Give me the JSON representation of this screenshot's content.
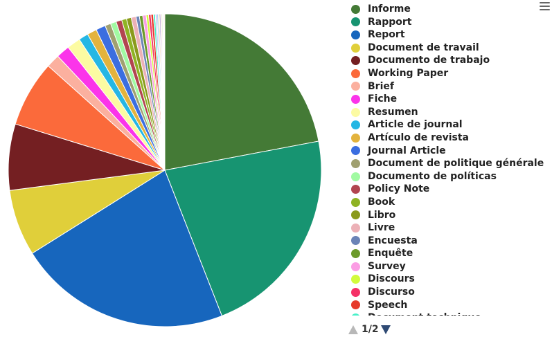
{
  "chart_data": {
    "type": "pie",
    "slices": [
      {
        "label": "Informe",
        "value": 22.2,
        "color": "#447a36"
      },
      {
        "label": "Rapport",
        "value": 22.2,
        "color": "#179471"
      },
      {
        "label": "Report",
        "value": 22.2,
        "color": "#1766bd"
      },
      {
        "label": "Document de travail",
        "value": 6.9,
        "color": "#e0cf3a"
      },
      {
        "label": "Documento de trabajo",
        "value": 6.9,
        "color": "#741f22"
      },
      {
        "label": "Working Paper",
        "value": 6.9,
        "color": "#fb6a3b"
      },
      {
        "label": "Brief",
        "value": 1.4,
        "color": "#fbb09f"
      },
      {
        "label": "Fiche",
        "value": 1.4,
        "color": "#fb34ea"
      },
      {
        "label": "Resumen",
        "value": 1.4,
        "color": "#fcfba2"
      },
      {
        "label": "Article de journal",
        "value": 1.0,
        "color": "#25b7e4"
      },
      {
        "label": "Artículo de revista",
        "value": 1.0,
        "color": "#e3b33d"
      },
      {
        "label": "Journal Article",
        "value": 1.0,
        "color": "#3b6ee0"
      },
      {
        "label": "Document de politique générale",
        "value": 0.6,
        "color": "#a0a070"
      },
      {
        "label": "Documento de políticas",
        "value": 0.6,
        "color": "#a1faa2"
      },
      {
        "label": "Policy Note",
        "value": 0.6,
        "color": "#b24550"
      },
      {
        "label": "Book",
        "value": 0.5,
        "color": "#8fb324"
      },
      {
        "label": "Libro",
        "value": 0.5,
        "color": "#8a9a1c"
      },
      {
        "label": "Livre",
        "value": 0.5,
        "color": "#ecb1b7"
      },
      {
        "label": "Encuesta",
        "value": 0.35,
        "color": "#6b84b7"
      },
      {
        "label": "Enquête",
        "value": 0.35,
        "color": "#6c9a2a"
      },
      {
        "label": "Survey",
        "value": 0.35,
        "color": "#fb9de4"
      },
      {
        "label": "Discours",
        "value": 0.25,
        "color": "#d2fb3c"
      },
      {
        "label": "Discurso",
        "value": 0.25,
        "color": "#f53167"
      },
      {
        "label": "Speech",
        "value": 0.25,
        "color": "#e63a2b"
      },
      {
        "label": "Document technique",
        "value": 0.2,
        "color": "#48f0c8"
      },
      {
        "label": "",
        "value": 0.15,
        "color": "#c7a4e8"
      },
      {
        "label": "",
        "value": 0.15,
        "color": "#9ed3f5"
      },
      {
        "label": "",
        "value": 0.12,
        "color": "#f5c46e"
      },
      {
        "label": "",
        "value": 0.12,
        "color": "#8e7cc3"
      },
      {
        "label": "",
        "value": 0.1,
        "color": "#ff8fb1"
      },
      {
        "label": "",
        "value": 0.1,
        "color": "#b5e48c"
      },
      {
        "label": "",
        "value": 0.08,
        "color": "#ffd166"
      },
      {
        "label": "",
        "value": 0.08,
        "color": "#90dbf4"
      },
      {
        "label": "",
        "value": 0.08,
        "color": "#f4a261"
      }
    ],
    "legend_placement": "right"
  },
  "legend": {
    "pager_text": "1/2"
  },
  "icons": {
    "menu": "hamburger-menu-icon",
    "page_up": "triangle-up-icon",
    "page_down": "triangle-down-icon"
  }
}
